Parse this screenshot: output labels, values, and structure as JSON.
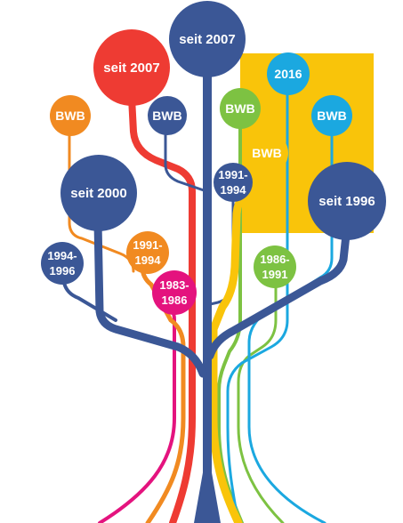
{
  "colors": {
    "blue": "#3b5796",
    "red": "#ee3b33",
    "orange": "#f18a21",
    "green": "#7dc242",
    "cyan": "#1ba8e0",
    "magenta": "#e4137e",
    "yellow": "#f9c40a",
    "white": "#ffffff"
  },
  "nodes": {
    "seit2007_blue": {
      "label": "seit 2007",
      "color": "blue"
    },
    "seit2007_red": {
      "label": "seit 2007",
      "color": "red"
    },
    "bwb_orange": {
      "label": "BWB",
      "color": "orange"
    },
    "bwb_blue": {
      "label": "BWB",
      "color": "blue"
    },
    "bwb_green": {
      "label": "BWB",
      "color": "green"
    },
    "n2016": {
      "label": "2016",
      "color": "cyan"
    },
    "bwb_cyan": {
      "label": "BWB",
      "color": "cyan"
    },
    "bwb_yellow": {
      "label": "BWB",
      "color": "yellow"
    },
    "seit2000": {
      "label": "seit 2000",
      "color": "blue"
    },
    "n1991_1994_blue": {
      "line1": "1991-",
      "line2": "1994",
      "color": "blue"
    },
    "seit1996": {
      "label": "seit 1996",
      "color": "blue"
    },
    "n1994_1996": {
      "line1": "1994-",
      "line2": "1996",
      "color": "blue"
    },
    "n1991_1994_orange": {
      "line1": "1991-",
      "line2": "1994",
      "color": "orange"
    },
    "n1986_1991": {
      "line1": "1986-",
      "line2": "1991",
      "color": "green"
    },
    "n1983_1986": {
      "line1": "1983-",
      "line2": "1986",
      "color": "magenta"
    }
  }
}
